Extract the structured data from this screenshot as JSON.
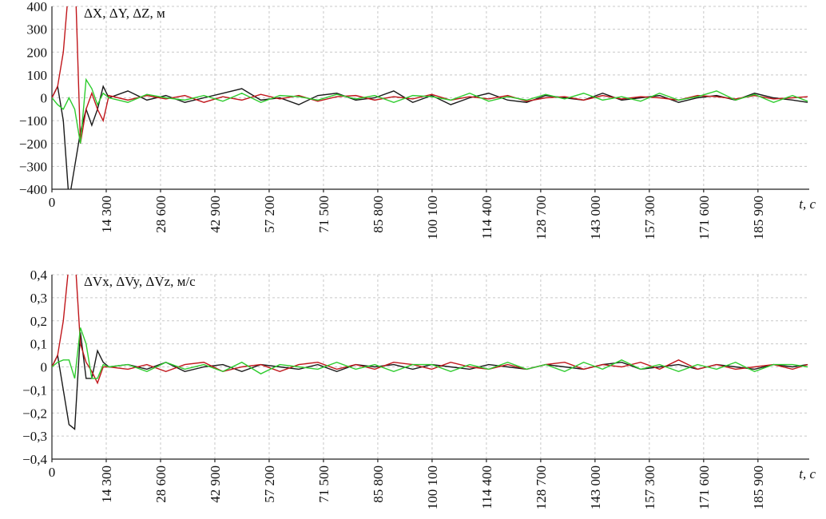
{
  "chart_data": [
    {
      "type": "line",
      "title": "ΔX, ΔY, ΔZ, м",
      "xlabel": "t, c",
      "grid": true,
      "x": [
        0,
        1500,
        3000,
        4500,
        6000,
        7500,
        9000,
        10500,
        12000,
        13500,
        15000,
        20000,
        25000,
        30000,
        35000,
        40000,
        45000,
        50000,
        55000,
        60000,
        65000,
        70000,
        75000,
        80000,
        85000,
        90000,
        95000,
        100000,
        105000,
        110000,
        115000,
        120000,
        125000,
        130000,
        135000,
        140000,
        145000,
        150000,
        155000,
        160000,
        165000,
        170000,
        175000,
        180000,
        185000,
        190000,
        195000,
        199000
      ],
      "xlim": [
        0,
        199400
      ],
      "xticks": [
        0,
        {
          "value": 14300,
          "label": "14 300"
        },
        {
          "value": 28600,
          "label": "28 600"
        },
        {
          "value": 42900,
          "label": "42 900"
        },
        {
          "value": 57200,
          "label": "57 200"
        },
        {
          "value": 71500,
          "label": "71 500"
        },
        {
          "value": 85800,
          "label": "85 800"
        },
        {
          "value": 100100,
          "label": "100 100"
        },
        {
          "value": 114400,
          "label": "114 400"
        },
        {
          "value": 128700,
          "label": "128 700"
        },
        {
          "value": 143000,
          "label": "143 000"
        },
        {
          "value": 157300,
          "label": "157 300"
        },
        {
          "value": 171600,
          "label": "171 600"
        },
        {
          "value": 185900,
          "label": "185 900"
        }
      ],
      "ylim": [
        -400,
        400
      ],
      "yticks": [
        {
          "value": -400,
          "label": "−400"
        },
        {
          "value": -300,
          "label": "−300"
        },
        {
          "value": -200,
          "label": "−200"
        },
        {
          "value": -100,
          "label": "−100"
        },
        0,
        100,
        200,
        300,
        400
      ],
      "series": [
        {
          "color": "#1a1a1a",
          "values": [
            0,
            50,
            -100,
            -450,
            -300,
            -150,
            -50,
            -120,
            -50,
            50,
            0,
            30,
            -10,
            10,
            -20,
            0,
            20,
            40,
            -10,
            0,
            -30,
            10,
            20,
            -10,
            0,
            30,
            -20,
            10,
            -30,
            0,
            20,
            -10,
            -20,
            10,
            0,
            -10,
            20,
            -10,
            0,
            10,
            -20,
            0,
            10,
            -10,
            20,
            0,
            -10,
            -20
          ]
        },
        {
          "color": "#c0161b",
          "values": [
            0,
            50,
            200,
            500,
            600,
            -200,
            -50,
            20,
            -50,
            -100,
            10,
            -10,
            10,
            -5,
            10,
            -20,
            5,
            -10,
            15,
            -5,
            10,
            -15,
            5,
            10,
            -10,
            5,
            -5,
            15,
            -10,
            5,
            -5,
            10,
            -15,
            0,
            5,
            -10,
            10,
            -5,
            5,
            0,
            -10,
            10,
            5,
            -5,
            10,
            -5,
            0,
            5
          ]
        },
        {
          "color": "#2ecc2e",
          "values": [
            0,
            -30,
            -50,
            0,
            -50,
            -200,
            80,
            40,
            -30,
            20,
            0,
            -20,
            15,
            0,
            -10,
            10,
            -15,
            20,
            -20,
            10,
            5,
            -10,
            15,
            -5,
            10,
            -20,
            10,
            5,
            -10,
            20,
            -15,
            5,
            -10,
            15,
            -5,
            20,
            -10,
            5,
            -15,
            20,
            -10,
            5,
            30,
            -10,
            15,
            -20,
            10,
            -15
          ]
        }
      ]
    },
    {
      "type": "line",
      "title": "ΔVx, ΔVy, ΔVz, м/с",
      "xlabel": "t, c",
      "grid": true,
      "x": [
        0,
        1500,
        3000,
        4500,
        6000,
        7500,
        9000,
        10500,
        12000,
        13500,
        15000,
        20000,
        25000,
        30000,
        35000,
        40000,
        45000,
        50000,
        55000,
        60000,
        65000,
        70000,
        75000,
        80000,
        85000,
        90000,
        95000,
        100000,
        105000,
        110000,
        115000,
        120000,
        125000,
        130000,
        135000,
        140000,
        145000,
        150000,
        155000,
        160000,
        165000,
        170000,
        175000,
        180000,
        185000,
        190000,
        195000,
        199000
      ],
      "xlim": [
        0,
        199400
      ],
      "xticks": [
        0,
        {
          "value": 14300,
          "label": "14 300"
        },
        {
          "value": 28600,
          "label": "28 600"
        },
        {
          "value": 42900,
          "label": "42 900"
        },
        {
          "value": 57200,
          "label": "57 200"
        },
        {
          "value": 71500,
          "label": "71 500"
        },
        {
          "value": 85800,
          "label": "85 800"
        },
        {
          "value": 100100,
          "label": "100 100"
        },
        {
          "value": 114400,
          "label": "114 400"
        },
        {
          "value": 128700,
          "label": "128 700"
        },
        {
          "value": 143000,
          "label": "143 000"
        },
        {
          "value": 157300,
          "label": "157 300"
        },
        {
          "value": 171600,
          "label": "171 600"
        },
        {
          "value": 185900,
          "label": "185 900"
        }
      ],
      "ylim": [
        -0.4,
        0.4
      ],
      "yticks": [
        {
          "value": -0.4,
          "label": "−0,4"
        },
        {
          "value": -0.3,
          "label": "−0,3"
        },
        {
          "value": -0.2,
          "label": "−0,2"
        },
        {
          "value": -0.1,
          "label": "−0,1"
        },
        0,
        {
          "value": 0.1,
          "label": "0,1"
        },
        {
          "value": 0.2,
          "label": "0,2"
        },
        {
          "value": 0.3,
          "label": "0,3"
        },
        {
          "value": 0.4,
          "label": "0,4"
        }
      ],
      "series": [
        {
          "color": "#1a1a1a",
          "values": [
            0,
            0.05,
            -0.1,
            -0.25,
            -0.27,
            0.15,
            -0.05,
            -0.05,
            0.07,
            0.02,
            0,
            0.01,
            -0.01,
            0.02,
            -0.02,
            0,
            0.01,
            -0.02,
            0.01,
            0,
            -0.01,
            0.01,
            -0.02,
            0.01,
            0,
            0.01,
            -0.01,
            0.01,
            0,
            -0.01,
            0.01,
            0,
            -0.01,
            0.01,
            0,
            -0.01,
            0.01,
            0.02,
            -0.01,
            0,
            0.01,
            -0.01,
            0.01,
            0,
            -0.01,
            0.01,
            0,
            0.01
          ]
        },
        {
          "color": "#c0161b",
          "values": [
            0,
            0.05,
            0.2,
            0.45,
            0.5,
            0.1,
            0.02,
            -0.02,
            -0.07,
            0,
            0,
            -0.01,
            0.01,
            -0.02,
            0.01,
            0.02,
            -0.02,
            0,
            0.01,
            -0.02,
            0.01,
            0.02,
            -0.01,
            0.01,
            -0.01,
            0.02,
            0.01,
            -0.01,
            0.02,
            0,
            -0.01,
            0.01,
            -0.01,
            0.01,
            0.02,
            -0.01,
            0.01,
            0,
            0.02,
            -0.01,
            0.03,
            -0.01,
            0.01,
            -0.01,
            0,
            0.01,
            -0.01,
            0.01
          ]
        },
        {
          "color": "#2ecc2e",
          "values": [
            0,
            0.02,
            0.03,
            0.03,
            -0.05,
            0.17,
            0.1,
            -0.05,
            -0.05,
            0.01,
            0,
            0.01,
            -0.02,
            0.02,
            -0.01,
            0.01,
            -0.02,
            0.02,
            -0.03,
            0.01,
            0,
            -0.01,
            0.02,
            -0.01,
            0.01,
            -0.02,
            0.01,
            0.01,
            -0.02,
            0.01,
            -0.01,
            0.02,
            -0.01,
            0.01,
            -0.02,
            0.02,
            -0.01,
            0.03,
            -0.01,
            0.01,
            -0.02,
            0.01,
            -0.01,
            0.02,
            -0.02,
            0.01,
            0.01,
            0
          ]
        }
      ]
    }
  ]
}
